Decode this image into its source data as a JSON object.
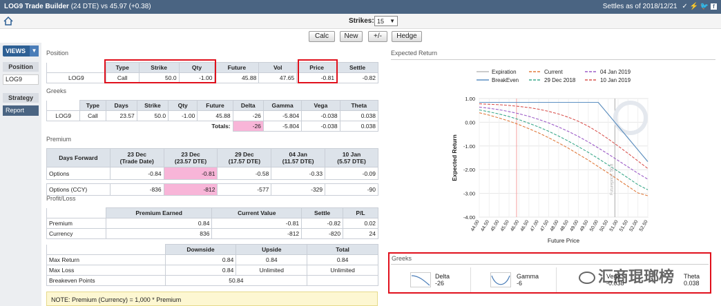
{
  "titlebar": {
    "app_title": "LOG9 Trade Builder",
    "dte": "(24 DTE)",
    "vs": "vs",
    "price_change": "45.97 (+0.38)",
    "settles": "Settles as of 2018/12/21"
  },
  "toolbar": {
    "strikes_label": "Strikes:",
    "strikes_value": "15",
    "buttons": [
      "Calc",
      "New",
      "+/-",
      "Hedge"
    ]
  },
  "sidebar": {
    "views_label": "VIEWS",
    "position_head": "Position",
    "position_item": "LOG9",
    "strategy_head": "Strategy",
    "report_item": "Report"
  },
  "position": {
    "section": "Position",
    "headers": [
      "Type",
      "Strike",
      "Qty",
      "Future",
      "Vol",
      "Price",
      "Settle"
    ],
    "row": [
      "LOG9",
      "Call",
      "50.0",
      "-1.00",
      "45.88",
      "47.65",
      "-0.81",
      "-0.82"
    ]
  },
  "greeks": {
    "section": "Greeks",
    "headers": [
      "Type",
      "Days",
      "Strike",
      "Qty",
      "Future",
      "Delta",
      "Gamma",
      "Vega",
      "Theta"
    ],
    "row": [
      "LOG9",
      "Call",
      "23.57",
      "50.0",
      "-1.00",
      "45.88",
      "-26",
      "-5.804",
      "-0.038",
      "0.038"
    ],
    "totals_label": "Totals:",
    "totals": [
      "-26",
      "-5.804",
      "-0.038",
      "0.038"
    ]
  },
  "premium": {
    "section": "Premium",
    "days_forward": "Days Forward",
    "cols": [
      {
        "a": "23 Dec",
        "b": "(Trade Date)"
      },
      {
        "a": "23 Dec",
        "b": "(23.57 DTE)"
      },
      {
        "a": "29 Dec",
        "b": "(17.57 DTE)"
      },
      {
        "a": "04 Jan",
        "b": "(11.57 DTE)"
      },
      {
        "a": "10 Jan",
        "b": "(5.57 DTE)"
      }
    ],
    "options_label": "Options",
    "options": [
      "-0.84",
      "-0.81",
      "-0.58",
      "-0.33",
      "-0.09"
    ],
    "ccy_label": "Options (CCY)",
    "ccy": [
      "-836",
      "-812",
      "-577",
      "-329",
      "-90"
    ]
  },
  "pl": {
    "section": "Profit/Loss",
    "headers": [
      "Premium Earned",
      "Current Value",
      "Settle",
      "P/L"
    ],
    "rows": [
      [
        "Premium",
        "0.84",
        "-0.81",
        "-0.82",
        "0.02"
      ],
      [
        "Currency",
        "836",
        "-812",
        "-820",
        "24"
      ]
    ]
  },
  "risk": {
    "headers": [
      "Downside",
      "Upside",
      "Total"
    ],
    "rows": [
      [
        "Max Return",
        "0.84",
        "0.84",
        "0.84"
      ],
      [
        "Max Loss",
        "0.84",
        "Unlimited",
        "Unlimited"
      ]
    ],
    "breakeven_label": "Breakeven Points",
    "breakeven": "50.84"
  },
  "note": "NOTE: Premium (Currency) = 1,000 * Premium",
  "expected_return": {
    "section": "Expected Return",
    "gridline_label": "Futureprice: 50.8"
  },
  "greeks_panel": {
    "section": "Greeks",
    "items": [
      {
        "name": "Delta",
        "value": "-26"
      },
      {
        "name": "Gamma",
        "value": "-6"
      },
      {
        "name": "Vega",
        "value": "-0.038"
      },
      {
        "name": "Theta",
        "value": "0.038"
      }
    ]
  },
  "watermark": "汇商琨瑯榜",
  "chart_data": {
    "type": "line",
    "xlabel": "Future Price",
    "ylabel": "Expected Return",
    "x": [
      44.0,
      44.5,
      45.0,
      45.5,
      46.0,
      46.5,
      47.0,
      47.5,
      48.0,
      48.5,
      49.0,
      49.5,
      50.0,
      50.5,
      51.0,
      51.5,
      52.0,
      52.5
    ],
    "ylim": [
      -4.0,
      1.0
    ],
    "yticks": [
      "1.00",
      "0.00",
      "-1.00",
      "-2.00",
      "-3.00",
      "-4.00"
    ],
    "xticks": [
      "44.00",
      "44.50",
      "45.00",
      "45.50",
      "46.00",
      "46.50",
      "47.00",
      "47.50",
      "48.00",
      "48.50",
      "49.00",
      "49.50",
      "50.00",
      "50.50",
      "51.00",
      "51.50",
      "52.00",
      "52.50"
    ],
    "legend_position": "top",
    "series": [
      {
        "name": "Expiration",
        "color": "#bbbbbb",
        "dash": "",
        "values": [
          0.84,
          0.84,
          0.84,
          0.84,
          0.84,
          0.84,
          0.84,
          0.84,
          0.84,
          0.84,
          0.84,
          0.84,
          0.84,
          0.34,
          -0.16,
          -0.66,
          -1.16,
          -1.66
        ]
      },
      {
        "name": "BreakEven",
        "color": "#5a8fc2",
        "dash": "",
        "values": [
          0.84,
          0.84,
          0.84,
          0.84,
          0.84,
          0.84,
          0.84,
          0.84,
          0.84,
          0.84,
          0.84,
          0.84,
          0.84,
          0.34,
          -0.16,
          -0.66,
          -1.16,
          -1.66
        ]
      },
      {
        "name": "Current",
        "color": "#e07a3c",
        "dash": "4,2",
        "values": [
          0.4,
          0.3,
          0.18,
          0.05,
          -0.1,
          -0.27,
          -0.45,
          -0.65,
          -0.87,
          -1.1,
          -1.35,
          -1.6,
          -1.87,
          -2.14,
          -2.42,
          -2.7,
          -2.98,
          -3.1
        ]
      },
      {
        "name": "29 Dec 2018",
        "color": "#3aa88a",
        "dash": "4,2",
        "values": [
          0.52,
          0.44,
          0.35,
          0.24,
          0.11,
          -0.04,
          -0.2,
          -0.38,
          -0.58,
          -0.8,
          -1.03,
          -1.27,
          -1.53,
          -1.8,
          -2.07,
          -2.35,
          -2.63,
          -2.85
        ]
      },
      {
        "name": "04 Jan 2019",
        "color": "#9c5cc7",
        "dash": "4,2",
        "values": [
          0.64,
          0.59,
          0.53,
          0.45,
          0.36,
          0.25,
          0.12,
          -0.03,
          -0.2,
          -0.39,
          -0.6,
          -0.83,
          -1.08,
          -1.34,
          -1.61,
          -1.88,
          -2.15,
          -2.4
        ]
      },
      {
        "name": "10 Jan 2019",
        "color": "#d9534f",
        "dash": "4,2",
        "values": [
          0.78,
          0.76,
          0.74,
          0.71,
          0.67,
          0.62,
          0.55,
          0.46,
          0.35,
          0.21,
          0.04,
          -0.17,
          -0.42,
          -0.7,
          -1.0,
          -1.31,
          -1.63,
          -1.95
        ]
      }
    ]
  }
}
